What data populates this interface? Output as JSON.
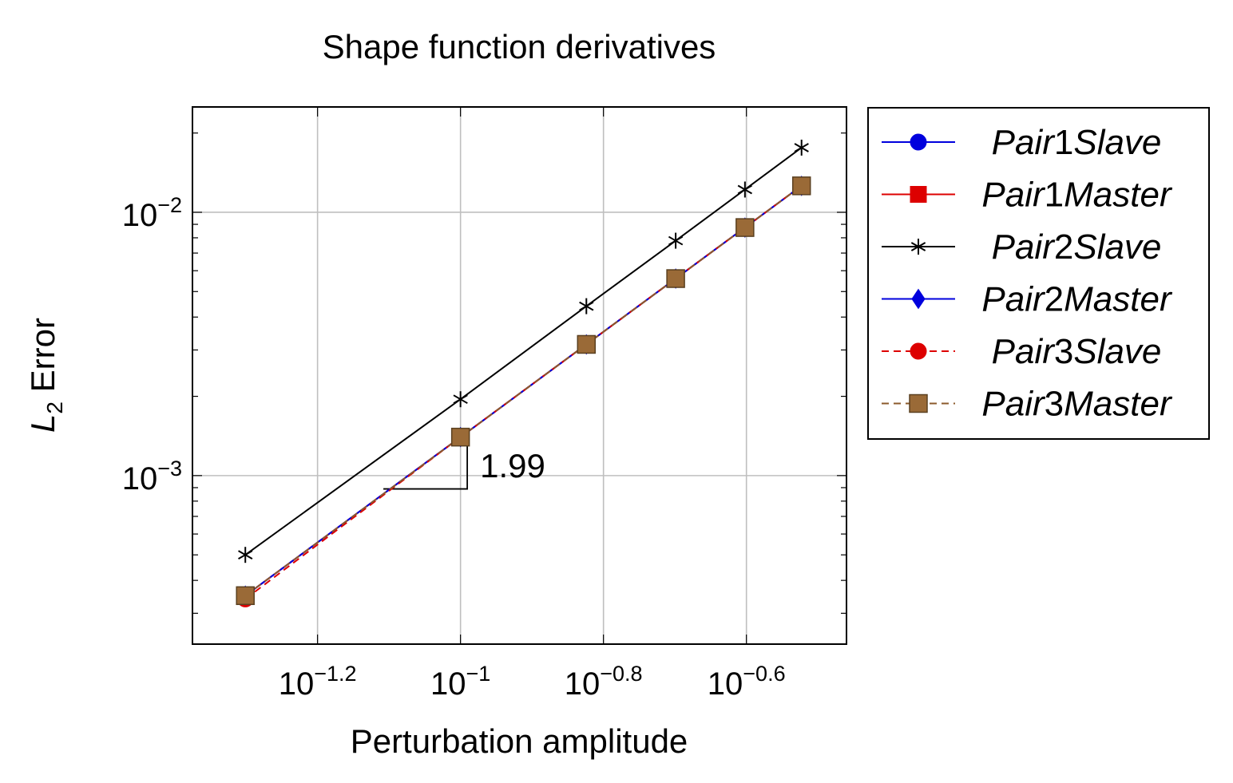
{
  "chart_data": {
    "type": "line",
    "title": "Shape function derivatives",
    "xlabel": "Perturbation amplitude",
    "ylabel_main": "L",
    "ylabel_sub": "2",
    "ylabel_rest": " Error",
    "xscale": "log",
    "yscale": "log",
    "xlim_exp": [
      -1.375,
      -0.46
    ],
    "ylim_exp": [
      -3.64,
      -1.6
    ],
    "x_ticks": [
      {
        "base": "10",
        "exp": "−1.2",
        "value_exp": -1.2
      },
      {
        "base": "10",
        "exp": "−1",
        "value_exp": -1.0
      },
      {
        "base": "10",
        "exp": "−0.8",
        "value_exp": -0.8
      },
      {
        "base": "10",
        "exp": "−0.6",
        "value_exp": -0.6
      }
    ],
    "y_ticks": [
      {
        "base": "10",
        "exp": "−2",
        "value_exp": -2
      },
      {
        "base": "10",
        "exp": "−3",
        "value_exp": -3
      }
    ],
    "grid": true,
    "legend_position": "outside-right",
    "x": [
      0.05,
      0.1,
      0.15,
      0.2,
      0.25,
      0.3
    ],
    "series": [
      {
        "name": "Pair1Slave",
        "name_parts": [
          "Pair",
          "1",
          "Slave"
        ],
        "values": [
          0.00035,
          0.0014,
          0.00315,
          0.0056,
          0.00875,
          0.0126
        ],
        "color": "#0000dd",
        "marker": "circle",
        "dash": false
      },
      {
        "name": "Pair1Master",
        "name_parts": [
          "Pair",
          "1",
          "Master"
        ],
        "values": [
          0.00035,
          0.0014,
          0.00315,
          0.0056,
          0.00875,
          0.0126
        ],
        "color": "#dd0000",
        "marker": "square",
        "dash": false
      },
      {
        "name": "Pair2Slave",
        "name_parts": [
          "Pair",
          "2",
          "Slave"
        ],
        "values": [
          0.0005,
          0.00195,
          0.0044,
          0.0078,
          0.0122,
          0.0176
        ],
        "color": "#000000",
        "marker": "star",
        "dash": false
      },
      {
        "name": "Pair2Master",
        "name_parts": [
          "Pair",
          "2",
          "Master"
        ],
        "values": [
          0.00035,
          0.0014,
          0.00315,
          0.0056,
          0.00875,
          0.0126
        ],
        "color": "#0000dd",
        "marker": "diamond",
        "dash": false
      },
      {
        "name": "Pair3Slave",
        "name_parts": [
          "Pair",
          "3",
          "Slave"
        ],
        "values": [
          0.00034,
          0.0014,
          0.00315,
          0.0056,
          0.00875,
          0.0126
        ],
        "color": "#dd0000",
        "marker": "circle",
        "dash": true
      },
      {
        "name": "Pair3Master",
        "name_parts": [
          "Pair",
          "3",
          "Master"
        ],
        "values": [
          0.00035,
          0.0014,
          0.00315,
          0.0056,
          0.00875,
          0.0126
        ],
        "color": "#8b5a2b",
        "marker": "square-outline",
        "dash": true
      }
    ],
    "slope_annotation": {
      "label": "1.99",
      "x_from": 0.078,
      "x_to": 0.1022,
      "y_at": 0.00089
    }
  }
}
